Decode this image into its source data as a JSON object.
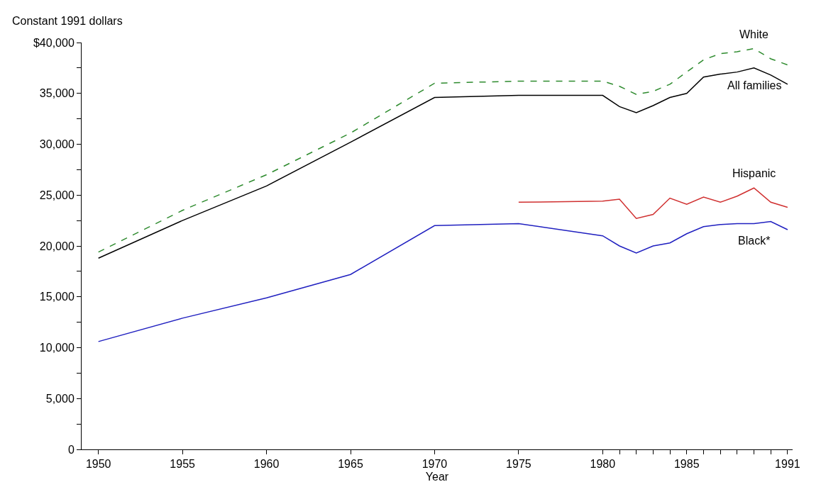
{
  "chart_data": {
    "type": "line",
    "xlabel": "Year",
    "ylabel": "Constant 1991 dollars",
    "x": [
      1950,
      1955,
      1960,
      1965,
      1970,
      1975,
      1980,
      1981,
      1982,
      1983,
      1984,
      1985,
      1986,
      1987,
      1988,
      1989,
      1990,
      1991
    ],
    "series": [
      {
        "name": "White",
        "color": "#2e8b2e",
        "line_style": "dashed",
        "values": [
          19400,
          23500,
          27000,
          31100,
          36000,
          36200,
          36200,
          35700,
          34900,
          35200,
          35900,
          37100,
          38300,
          38900,
          39100,
          39400,
          38400,
          37800
        ]
      },
      {
        "name": "All families",
        "color": "#000000",
        "line_style": "solid",
        "values": [
          18800,
          22500,
          25900,
          30200,
          34600,
          34800,
          34800,
          33700,
          33100,
          33800,
          34600,
          35000,
          36600,
          36900,
          37100,
          37500,
          36800,
          35900
        ]
      },
      {
        "name": "Hispanic",
        "color": "#d03030",
        "line_style": "solid",
        "x": [
          1975,
          1980,
          1981,
          1982,
          1983,
          1984,
          1985,
          1986,
          1987,
          1988,
          1989,
          1990,
          1991
        ],
        "values": [
          24300,
          24400,
          24600,
          22700,
          23100,
          24700,
          24100,
          24800,
          24300,
          24900,
          25700,
          24300,
          23800
        ]
      },
      {
        "name": "Black*",
        "color": "#2020c0",
        "line_style": "solid",
        "values": [
          10600,
          12900,
          14900,
          17200,
          22000,
          22200,
          21000,
          20000,
          19300,
          20000,
          20300,
          21200,
          21900,
          22100,
          22200,
          22200,
          22400,
          21600
        ]
      }
    ],
    "xlim": [
      1949,
      1991.3
    ],
    "xticks": [
      1950,
      1955,
      1960,
      1965,
      1970,
      1975,
      1980,
      {
        "value": 1981,
        "label": null
      },
      {
        "value": 1982,
        "label": null
      },
      {
        "value": 1983,
        "label": null
      },
      {
        "value": 1984,
        "label": null
      },
      1985,
      {
        "value": 1986,
        "label": null
      },
      {
        "value": 1987,
        "label": null
      },
      {
        "value": 1988,
        "label": null
      },
      {
        "value": 1989,
        "label": null
      },
      {
        "value": 1990,
        "label": null
      },
      1991
    ],
    "ylim": [
      0,
      40000
    ],
    "yticks": [
      {
        "value": 0,
        "label": "0"
      },
      {
        "value": 2500,
        "label": null
      },
      {
        "value": 5000,
        "label": "5,000"
      },
      {
        "value": 7500,
        "label": null
      },
      {
        "value": 10000,
        "label": "10,000"
      },
      {
        "value": 12500,
        "label": null
      },
      {
        "value": 15000,
        "label": "15,000"
      },
      {
        "value": 17500,
        "label": null
      },
      {
        "value": 20000,
        "label": "20,000"
      },
      {
        "value": 22500,
        "label": null
      },
      {
        "value": 25000,
        "label": "25,000"
      },
      {
        "value": 27500,
        "label": null
      },
      {
        "value": 30000,
        "label": "30,000"
      },
      {
        "value": 32500,
        "label": null
      },
      {
        "value": 35000,
        "label": "35,000"
      },
      {
        "value": 37500,
        "label": null
      },
      {
        "value": 40000,
        "label": "$40,000"
      }
    ],
    "legend": false,
    "marker": "none"
  }
}
